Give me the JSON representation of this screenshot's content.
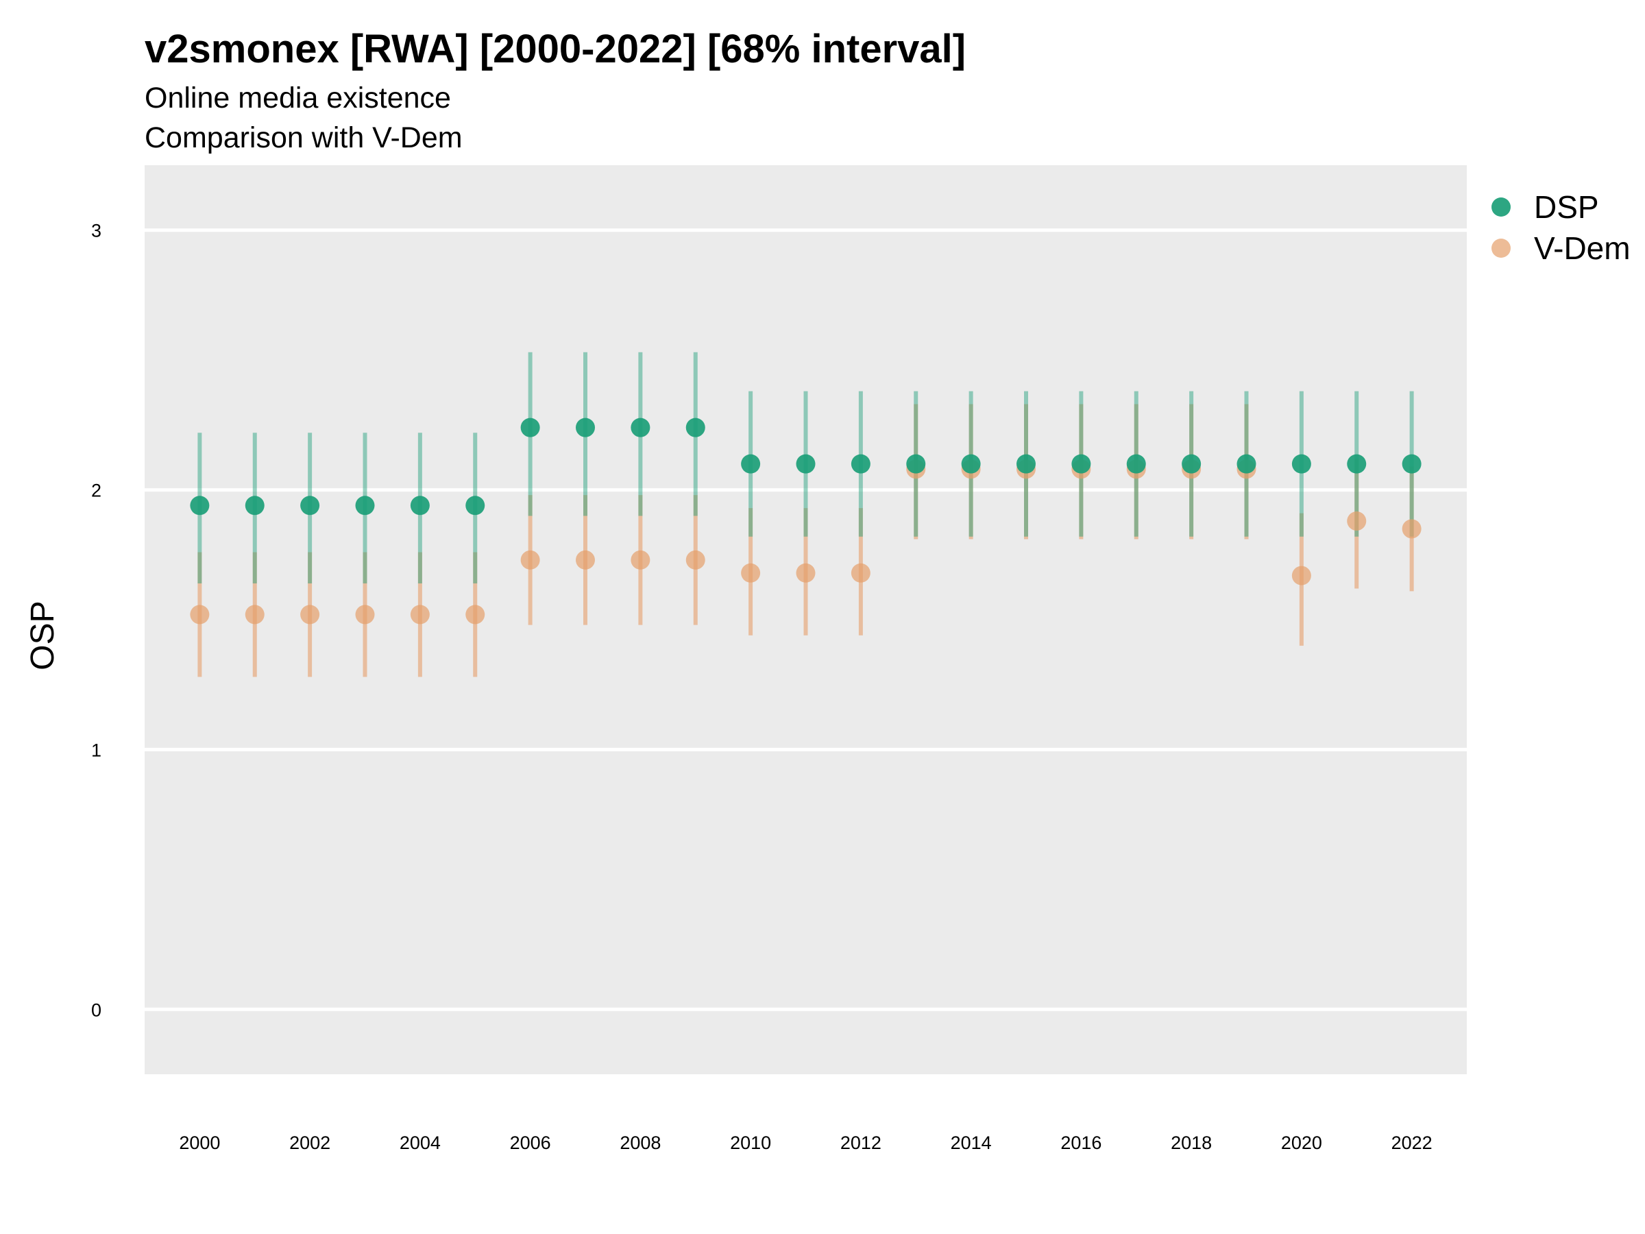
{
  "chart_data": {
    "type": "scatter",
    "title": "v2smonex [RWA] [2000-2022] [68% interval]",
    "subtitle": [
      "Online media existence",
      "Comparison with V-Dem"
    ],
    "xlabel": "",
    "ylabel": "OSP",
    "xlim": [
      1999,
      2023
    ],
    "ylim": [
      -0.25,
      3.25
    ],
    "x_ticks": [
      2000,
      2002,
      2004,
      2006,
      2008,
      2010,
      2012,
      2014,
      2016,
      2018,
      2020,
      2022
    ],
    "y_ticks": [
      0,
      1,
      2,
      3
    ],
    "grid": true,
    "legend_position": "right",
    "x": [
      2000,
      2001,
      2002,
      2003,
      2004,
      2005,
      2006,
      2007,
      2008,
      2009,
      2010,
      2011,
      2012,
      2013,
      2014,
      2015,
      2016,
      2017,
      2018,
      2019,
      2020,
      2021,
      2022
    ],
    "series": [
      {
        "name": "DSP",
        "color": "#1b9e77",
        "values": [
          1.94,
          1.94,
          1.94,
          1.94,
          1.94,
          1.94,
          2.24,
          2.24,
          2.24,
          2.24,
          2.1,
          2.1,
          2.1,
          2.1,
          2.1,
          2.1,
          2.1,
          2.1,
          2.1,
          2.1,
          2.1,
          2.1,
          2.1
        ],
        "lower": [
          1.64,
          1.64,
          1.64,
          1.64,
          1.64,
          1.64,
          1.9,
          1.9,
          1.9,
          1.9,
          1.82,
          1.82,
          1.82,
          1.82,
          1.82,
          1.82,
          1.82,
          1.82,
          1.82,
          1.82,
          1.82,
          1.82,
          1.82
        ],
        "upper": [
          2.22,
          2.22,
          2.22,
          2.22,
          2.22,
          2.22,
          2.53,
          2.53,
          2.53,
          2.53,
          2.38,
          2.38,
          2.38,
          2.38,
          2.38,
          2.38,
          2.38,
          2.38,
          2.38,
          2.38,
          2.38,
          2.38,
          2.38
        ]
      },
      {
        "name": "V-Dem",
        "color": "#e69f6b",
        "values": [
          1.52,
          1.52,
          1.52,
          1.52,
          1.52,
          1.52,
          1.73,
          1.73,
          1.73,
          1.73,
          1.68,
          1.68,
          1.68,
          2.08,
          2.08,
          2.08,
          2.08,
          2.08,
          2.08,
          2.08,
          1.67,
          1.88,
          1.85
        ],
        "lower": [
          1.28,
          1.28,
          1.28,
          1.28,
          1.28,
          1.28,
          1.48,
          1.48,
          1.48,
          1.48,
          1.44,
          1.44,
          1.44,
          1.81,
          1.81,
          1.81,
          1.81,
          1.81,
          1.81,
          1.81,
          1.4,
          1.62,
          1.61
        ],
        "upper": [
          1.76,
          1.76,
          1.76,
          1.76,
          1.76,
          1.76,
          1.98,
          1.98,
          1.98,
          1.98,
          1.93,
          1.93,
          1.93,
          2.33,
          2.33,
          2.33,
          2.33,
          2.33,
          2.33,
          2.33,
          1.91,
          2.12,
          2.09
        ]
      }
    ]
  }
}
